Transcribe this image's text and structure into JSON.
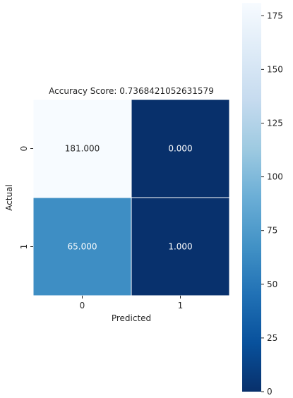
{
  "chart_data": {
    "type": "heatmap",
    "title": "Accuracy Score: 0.7368421052631579",
    "xlabel": "Predicted",
    "ylabel": "Actual",
    "x_categories": [
      "0",
      "1"
    ],
    "y_categories": [
      "0",
      "1"
    ],
    "values": [
      [
        181,
        0
      ],
      [
        65,
        1
      ]
    ],
    "cell_labels": [
      [
        "181.000",
        "0.000"
      ],
      [
        "65.000",
        "1.000"
      ]
    ],
    "colormap": "Blues_r",
    "colormap_stops": [
      "#08306b",
      "#08519c",
      "#2171b5",
      "#4292c6",
      "#6baed6",
      "#9ecae1",
      "#c6dbef",
      "#deebf7",
      "#f7fbff"
    ],
    "colorbar": {
      "range": [
        0,
        181
      ],
      "ticks": [
        0,
        25,
        50,
        75,
        100,
        125,
        150,
        175
      ]
    },
    "grid_line_color": "#ffffff"
  }
}
